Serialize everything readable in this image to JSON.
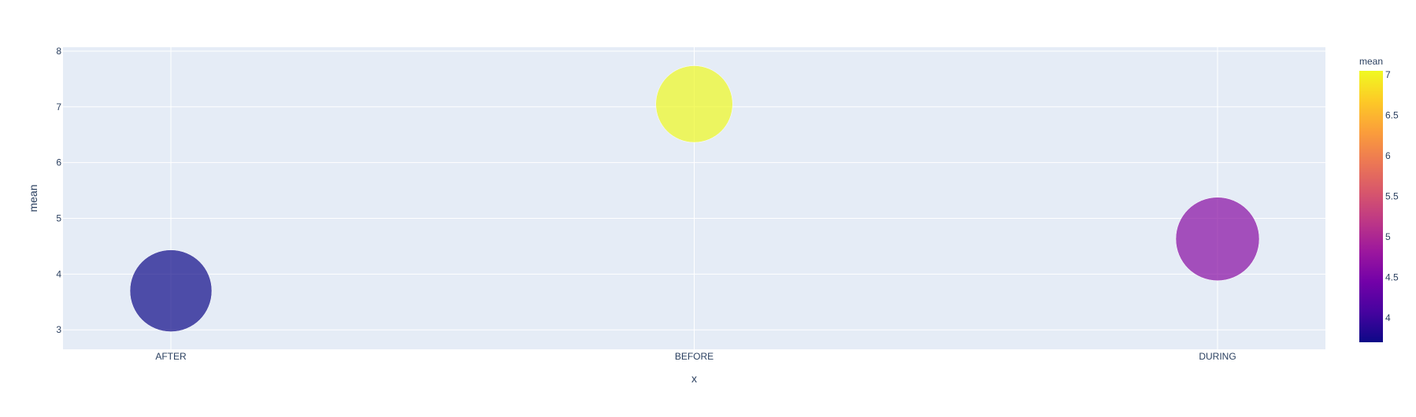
{
  "chart_data": {
    "type": "scatter",
    "title": "",
    "xlabel": "x",
    "ylabel": "mean",
    "categories": [
      "AFTER",
      "BEFORE",
      "DURING"
    ],
    "series": [
      {
        "x": [
          "AFTER",
          "BEFORE",
          "DURING"
        ],
        "y": [
          3.7,
          7.05,
          4.63
        ],
        "size": [
          5.0,
          4.4,
          5.2
        ],
        "color_values": [
          3.7,
          7.05,
          4.63
        ]
      }
    ],
    "ylim": [
      2.65,
      8.07
    ],
    "yticks": [
      3,
      4,
      5,
      6,
      7,
      8
    ],
    "grid": true,
    "colorbar": {
      "title": "mean",
      "range": [
        3.7,
        7.05
      ],
      "ticks": [
        4,
        4.5,
        5,
        5.5,
        6,
        6.5,
        7
      ],
      "colorscale": [
        "#0d0887",
        "#46039f",
        "#7201a8",
        "#9c179e",
        "#bd3786",
        "#d8576b",
        "#ed7953",
        "#fb9f3a",
        "#fdca26",
        "#f0f921"
      ]
    },
    "plot_background": "#e5ecf6",
    "marker_opacity": 0.7
  }
}
